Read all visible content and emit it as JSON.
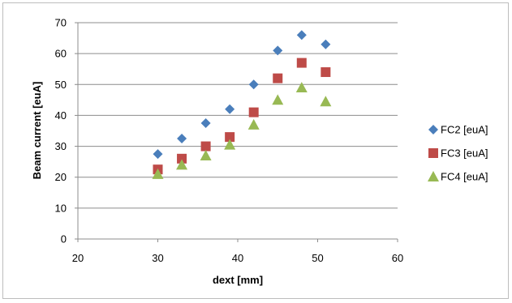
{
  "chart_data": {
    "type": "scatter",
    "xlabel": "dext [mm]",
    "ylabel": "Beam current [euA]",
    "xlim": [
      20,
      60
    ],
    "ylim": [
      0,
      70
    ],
    "x_ticks": [
      20,
      30,
      40,
      50,
      60
    ],
    "y_ticks": [
      0,
      10,
      20,
      30,
      40,
      50,
      60,
      70
    ],
    "grid": "horizontal",
    "legend_position": "right",
    "series": [
      {
        "name": "FC2 [euA]",
        "marker": "diamond",
        "color": "#4a7ebb",
        "x": [
          30,
          33,
          36,
          39,
          42,
          45,
          48,
          51
        ],
        "y": [
          27.5,
          32.5,
          37.5,
          42,
          50,
          61,
          66,
          63
        ]
      },
      {
        "name": "FC3 [euA]",
        "marker": "square",
        "color": "#be4b48",
        "x": [
          30,
          33,
          36,
          39,
          42,
          45,
          48,
          51
        ],
        "y": [
          22.5,
          26,
          30,
          33,
          41,
          52,
          57,
          54
        ]
      },
      {
        "name": "FC4 [euA]",
        "marker": "triangle",
        "color": "#98b954",
        "x": [
          30,
          33,
          36,
          39,
          42,
          45,
          48,
          51
        ],
        "y": [
          21,
          24,
          27,
          30.5,
          37,
          45,
          49,
          44.5
        ]
      }
    ]
  }
}
